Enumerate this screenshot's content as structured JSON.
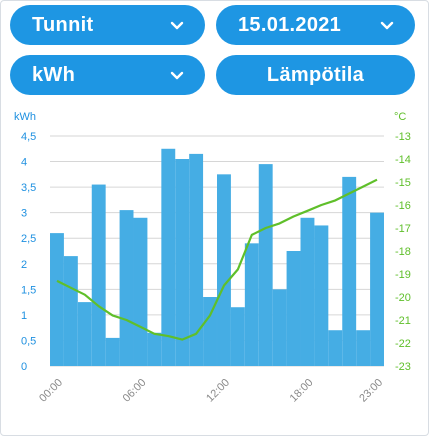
{
  "controls": {
    "period": {
      "value": "Tunnit",
      "icon": "chevron-down-icon"
    },
    "date": {
      "value": "15.01.2021",
      "icon": "chevron-down-icon"
    },
    "unit": {
      "value": "kWh",
      "icon": "chevron-down-icon"
    },
    "temperature_button": "Lämpötila"
  },
  "colors": {
    "button": "#1e96e3",
    "bar": "#45ade4",
    "temperature_line": "#5fbf2a",
    "left_axis_text": "#1e90e0",
    "right_axis_text": "#5fbf2a",
    "grid": "#d6d6d6"
  },
  "chart_data": {
    "type": "bar+line",
    "grid": true,
    "x_tick_labels": [
      "00:00",
      "06:00",
      "12:00",
      "18:00",
      "23:00"
    ],
    "x_tick_hours": [
      0,
      6,
      12,
      18,
      23
    ],
    "hours": [
      0,
      1,
      2,
      3,
      4,
      5,
      6,
      7,
      8,
      9,
      10,
      11,
      12,
      13,
      14,
      15,
      16,
      17,
      18,
      19,
      20,
      21,
      22,
      23
    ],
    "y_left": {
      "unit": "kWh",
      "range": [
        0,
        4.5
      ],
      "ticks": [
        0,
        0.5,
        1,
        1.5,
        2,
        2.5,
        3,
        3.5,
        4,
        4.5
      ],
      "tick_labels": [
        "0",
        "0,5",
        "1",
        "1,5",
        "2",
        "2,5",
        "3",
        "3,5",
        "4",
        "4,5"
      ]
    },
    "y_right": {
      "unit": "°C",
      "range": [
        -23,
        -13
      ],
      "ticks": [
        -13,
        -14,
        -15,
        -16,
        -17,
        -18,
        -19,
        -20,
        -21,
        -22,
        -23
      ],
      "tick_labels": [
        "-13",
        "-14",
        "-15",
        "-16",
        "-17",
        "-18",
        "-19",
        "-20",
        "-21",
        "-22",
        "-23"
      ]
    },
    "series": [
      {
        "kind": "bar",
        "axis": "left",
        "values": [
          2.6,
          2.15,
          1.25,
          3.55,
          0.55,
          3.05,
          2.9,
          0.65,
          4.25,
          4.05,
          4.15,
          1.35,
          3.75,
          1.15,
          2.4,
          3.95,
          1.5,
          2.25,
          2.9,
          2.75,
          0.7,
          3.7,
          0.7,
          3.0
        ]
      },
      {
        "kind": "line",
        "axis": "right",
        "values": [
          -19.3,
          -19.6,
          -19.9,
          -20.4,
          -20.8,
          -21.0,
          -21.3,
          -21.6,
          -21.7,
          -21.85,
          -21.6,
          -20.8,
          -19.5,
          -18.8,
          -17.3,
          -17.0,
          -16.8,
          -16.5,
          -16.25,
          -16.0,
          -15.8,
          -15.5,
          -15.2,
          -14.9
        ]
      }
    ]
  }
}
